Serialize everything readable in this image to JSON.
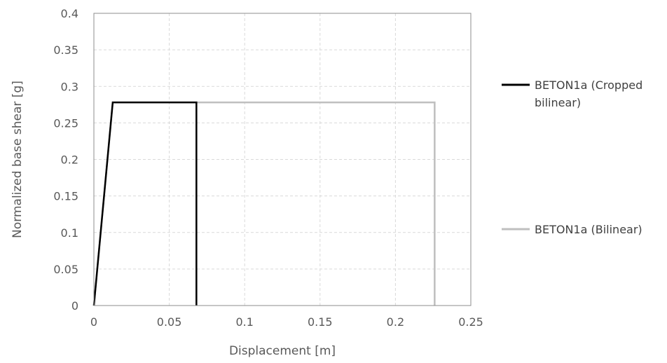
{
  "chart_data": {
    "type": "line",
    "xlabel": "Displacement [m]",
    "ylabel": "Normalized base shear [g]",
    "xlim": [
      0,
      0.25
    ],
    "ylim": [
      0,
      0.4
    ],
    "x_ticks": [
      0,
      0.05,
      0.1,
      0.15,
      0.2,
      0.25
    ],
    "x_tick_labels": [
      "0",
      "0.05",
      "0.1",
      "0.15",
      "0.2",
      "0.25"
    ],
    "y_ticks": [
      0,
      0.05,
      0.1,
      0.15,
      0.2,
      0.25,
      0.3,
      0.35,
      0.4
    ],
    "y_tick_labels": [
      "0",
      "0.05",
      "0.1",
      "0.15",
      "0.2",
      "0.25",
      "0.3",
      "0.35",
      "0.4"
    ],
    "grid": true,
    "grid_style": "dashed",
    "legend_position": "right",
    "series": [
      {
        "name": "BETON1a (Bilinear)",
        "legend_lines": [
          "BETON1a (Bilinear)"
        ],
        "color": "#bfbfbf",
        "x": [
          0,
          0.0125,
          0.226,
          0.226
        ],
        "y": [
          0,
          0.278,
          0.278,
          0
        ]
      },
      {
        "name": "BETON1a (Cropped bilinear)",
        "legend_lines": [
          "BETON1a (Cropped",
          "bilinear)"
        ],
        "color": "#000000",
        "x": [
          0,
          0.0125,
          0.068,
          0.068
        ],
        "y": [
          0,
          0.278,
          0.278,
          0
        ]
      }
    ]
  }
}
